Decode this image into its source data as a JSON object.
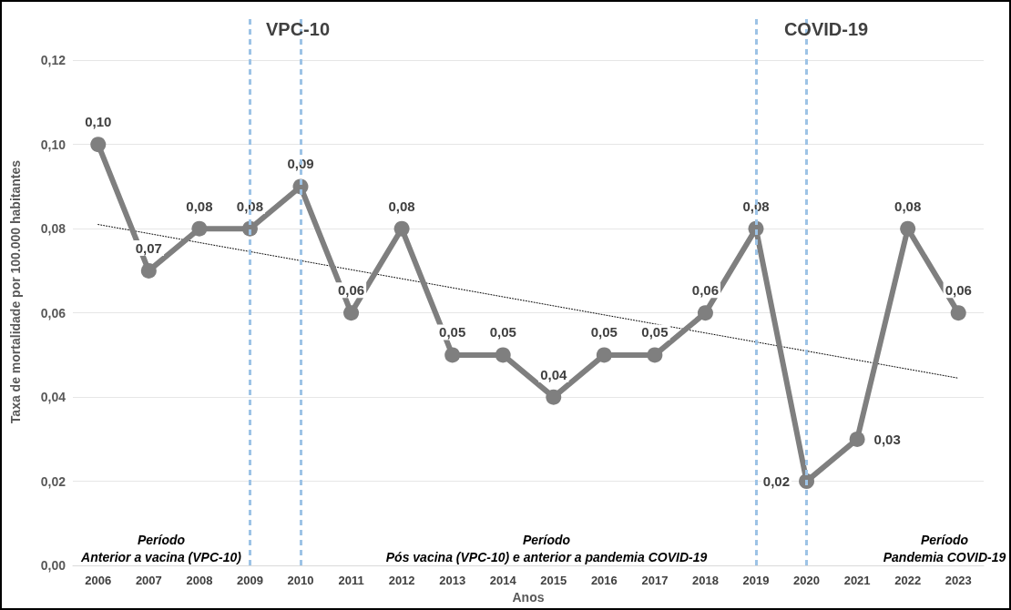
{
  "chart_data": {
    "type": "line",
    "xlabel": "Anos",
    "ylabel": "Taxa de mortalidade por 100.000 habitantes",
    "categories": [
      "2006",
      "2007",
      "2008",
      "2009",
      "2010",
      "2011",
      "2012",
      "2013",
      "2014",
      "2015",
      "2016",
      "2017",
      "2018",
      "2019",
      "2020",
      "2021",
      "2022",
      "2023"
    ],
    "series": [
      {
        "color": "#7f7f7f",
        "values": [
          0.1,
          0.07,
          0.08,
          0.08,
          0.09,
          0.06,
          0.08,
          0.05,
          0.05,
          0.04,
          0.05,
          0.05,
          0.06,
          0.08,
          0.02,
          0.03,
          0.08,
          0.06
        ],
        "value_labels": [
          "0,10",
          "0,07",
          "0,08",
          "0,08",
          "0,09",
          "0,06",
          "0,08",
          "0,05",
          "0,05",
          "0,04",
          "0,05",
          "0,05",
          "0,06",
          "0,08",
          "0,02",
          "0,03",
          "0,08",
          "0,06"
        ],
        "marker": "circle",
        "line_style": "solid"
      },
      {
        "type": "line",
        "color": "#000000",
        "values": [
          0.081,
          null,
          null,
          null,
          null,
          null,
          null,
          null,
          null,
          null,
          null,
          null,
          null,
          null,
          null,
          null,
          null,
          0.0445
        ],
        "marker": "none",
        "line_style": "dotted"
      }
    ],
    "ylim": [
      0,
      0.13
    ],
    "yticks": [
      {
        "value": 0,
        "label": "0,00"
      },
      {
        "value": 0.02,
        "label": "0,02"
      },
      {
        "value": 0.04,
        "label": "0,04"
      },
      {
        "value": 0.06,
        "label": "0,06"
      },
      {
        "value": 0.08,
        "label": "0,08"
      },
      {
        "value": 0.1,
        "label": "0,10"
      },
      {
        "value": 0.12,
        "label": "0,12"
      }
    ],
    "grid": "y",
    "ref_lines": [
      {
        "axis": "x",
        "value": "2009",
        "color": "#9dc3e6",
        "line_style": "dashed"
      },
      {
        "axis": "x",
        "value": "2010",
        "color": "#9dc3e6",
        "line_style": "dashed"
      },
      {
        "axis": "x",
        "value": "2019",
        "color": "#9dc3e6",
        "line_style": "dashed"
      },
      {
        "axis": "x",
        "value": "2020",
        "color": "#9dc3e6",
        "line_style": "dashed"
      }
    ],
    "annotations": [
      "VPC-10",
      "COVID-19",
      "Período\nAnterior a vacina (VPC-10)",
      "Período\nPós vacina (VPC-10) e anterior a pandemia COVID-19",
      "Período\nPandemia COVID-19"
    ]
  }
}
